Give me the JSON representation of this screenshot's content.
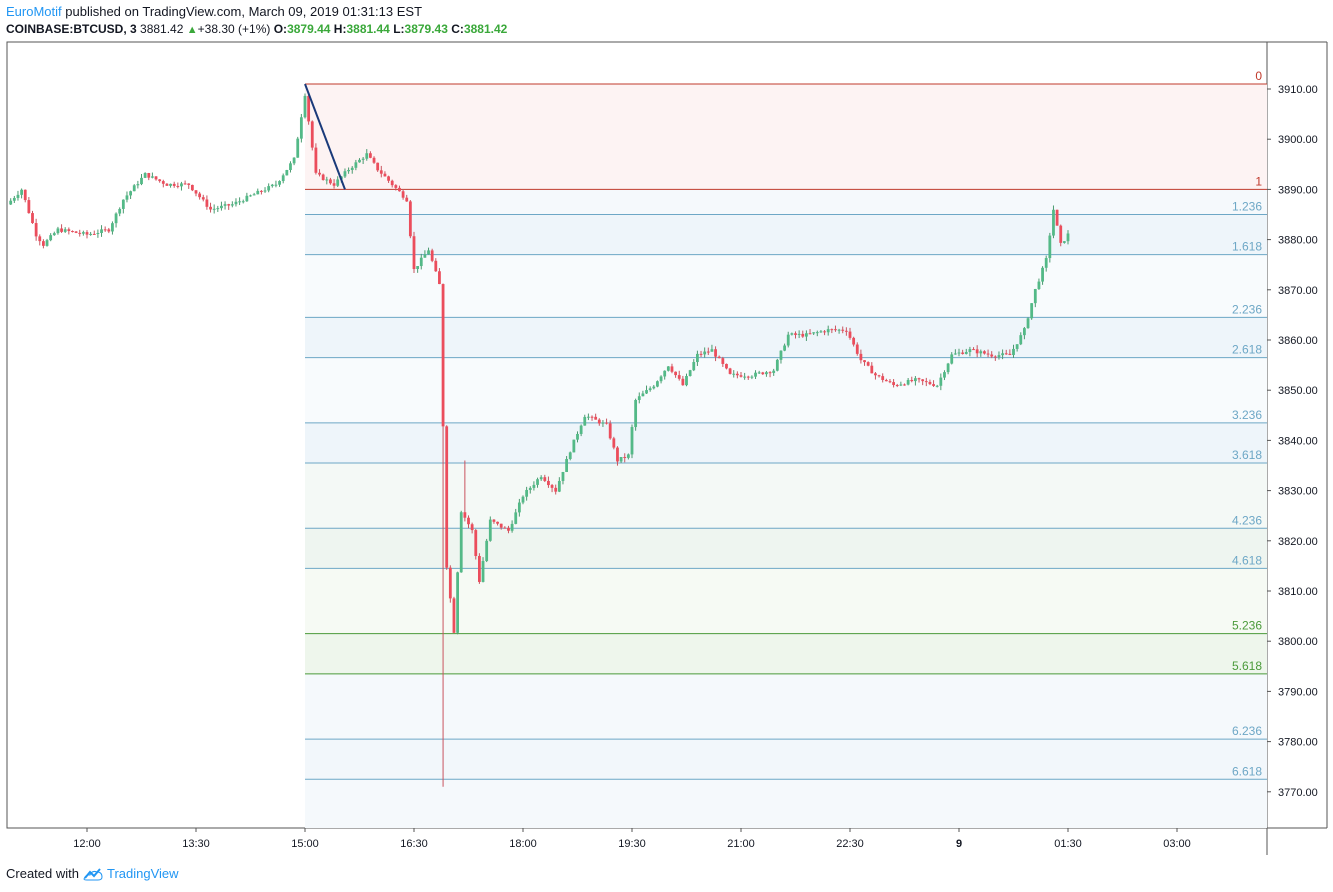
{
  "header": {
    "author": "EuroMotif",
    "published": " published on TradingView.com, March 09, 2019 01:31:13 EST",
    "symbol": "COINBASE:BTCUSD, 3",
    "last": "3881.42",
    "change_arrow": "▲",
    "change": "+38.30 (+1%)",
    "o_label": "O:",
    "o_value": "3879.44",
    "h_label": "H:",
    "h_value": "3881.44",
    "l_label": "L:",
    "l_value": "3879.43",
    "c_label": "C:",
    "c_value": "3881.42"
  },
  "footer": {
    "created_with": "Created with",
    "brand": "TradingView",
    "logo_icon": "tradingview-cloud-icon"
  },
  "chart_data": {
    "type": "candlestick",
    "interval_minutes": 3,
    "up_color": "#53b987",
    "down_color": "#eb4d5c",
    "x_ticks": [
      "12:00",
      "13:30",
      "15:00",
      "16:30",
      "18:00",
      "19:30",
      "21:00",
      "22:30",
      "9",
      "01:30",
      "03:00"
    ],
    "y_ticks": [
      "3910.00",
      "3900.00",
      "3890.00",
      "3880.00",
      "3870.00",
      "3860.00",
      "3850.00",
      "3840.00",
      "3830.00",
      "3820.00",
      "3810.00",
      "3800.00",
      "3790.00",
      "3780.00",
      "3770.00"
    ],
    "ylim": [
      3758,
      3918
    ],
    "grid": false,
    "price_path": [
      [
        "10:54",
        3887
      ],
      [
        "11:06",
        3890
      ],
      [
        "11:18",
        3881
      ],
      [
        "11:24",
        3879
      ],
      [
        "11:36",
        3882
      ],
      [
        "12:00",
        3881
      ],
      [
        "12:18",
        3882
      ],
      [
        "12:30",
        3888
      ],
      [
        "12:48",
        3893
      ],
      [
        "13:06",
        3891
      ],
      [
        "13:24",
        3891
      ],
      [
        "13:42",
        3886
      ],
      [
        "14:00",
        3887
      ],
      [
        "14:18",
        3889
      ],
      [
        "14:36",
        3891
      ],
      [
        "14:51",
        3896
      ],
      [
        "15:00",
        3909
      ],
      [
        "15:09",
        3893
      ],
      [
        "15:24",
        3891
      ],
      [
        "15:36",
        3894
      ],
      [
        "15:51",
        3897
      ],
      [
        "16:00",
        3894
      ],
      [
        "16:12",
        3891
      ],
      [
        "16:24",
        3888
      ],
      [
        "16:30",
        3874
      ],
      [
        "16:42",
        3878
      ],
      [
        "16:51",
        3871
      ],
      [
        "16:57",
        3815
      ],
      [
        "17:03",
        3802
      ],
      [
        "17:09",
        3826
      ],
      [
        "17:18",
        3822
      ],
      [
        "17:24",
        3812
      ],
      [
        "17:33",
        3824
      ],
      [
        "17:48",
        3822
      ],
      [
        "18:00",
        3829
      ],
      [
        "18:15",
        3833
      ],
      [
        "18:27",
        3830
      ],
      [
        "18:39",
        3838
      ],
      [
        "18:51",
        3845
      ],
      [
        "19:09",
        3843
      ],
      [
        "19:18",
        3836
      ],
      [
        "19:27",
        3837
      ],
      [
        "19:33",
        3848
      ],
      [
        "19:48",
        3851
      ],
      [
        "20:00",
        3855
      ],
      [
        "20:12",
        3851
      ],
      [
        "20:24",
        3857
      ],
      [
        "20:36",
        3858
      ],
      [
        "20:51",
        3853
      ],
      [
        "21:09",
        3853
      ],
      [
        "21:27",
        3854
      ],
      [
        "21:39",
        3861
      ],
      [
        "21:54",
        3861
      ],
      [
        "22:12",
        3862
      ],
      [
        "22:27",
        3862
      ],
      [
        "22:39",
        3856
      ],
      [
        "22:51",
        3853
      ],
      [
        "23:06",
        3851
      ],
      [
        "23:24",
        3852
      ],
      [
        "23:42",
        3851
      ],
      [
        "23:54",
        3857
      ],
      [
        "00:09",
        3858
      ],
      [
        "00:27",
        3857
      ],
      [
        "00:42",
        3857
      ],
      [
        "00:54",
        3862
      ],
      [
        "01:03",
        3870
      ],
      [
        "01:12",
        3876
      ],
      [
        "01:18",
        3886
      ],
      [
        "01:24",
        3879
      ],
      [
        "01:30",
        3881
      ]
    ],
    "trend_line": {
      "from": [
        "15:00",
        3911
      ],
      "to": [
        "15:33",
        3890
      ],
      "color": "#1a3a7a"
    },
    "fib_extension": {
      "start_time": "15:00",
      "end_label_side": "right",
      "levels": [
        {
          "label": "0",
          "price": 3911.0,
          "color": "#c0392b",
          "fill": "#fdf3f3"
        },
        {
          "label": "1",
          "price": 3890.0,
          "color": "#c0392b",
          "fill": "#f5f9fc"
        },
        {
          "label": "1.236",
          "price": 3885.0,
          "color": "#6da7c6",
          "fill": "#eef5fa"
        },
        {
          "label": "1.618",
          "price": 3877.0,
          "color": "#6da7c6",
          "fill": "#f8fbfd"
        },
        {
          "label": "2.236",
          "price": 3864.5,
          "color": "#6da7c6",
          "fill": "#eef5fa"
        },
        {
          "label": "2.618",
          "price": 3856.5,
          "color": "#6da7c6",
          "fill": "#f8fbfd"
        },
        {
          "label": "3.236",
          "price": 3843.5,
          "color": "#6da7c6",
          "fill": "#eef5fa"
        },
        {
          "label": "3.618",
          "price": 3835.5,
          "color": "#6da7c6",
          "fill": "#f4f9f6"
        },
        {
          "label": "4.236",
          "price": 3822.5,
          "color": "#6da7c6",
          "fill": "#eef5f0"
        },
        {
          "label": "4.618",
          "price": 3814.5,
          "color": "#6da7c6",
          "fill": "#f6faf4"
        },
        {
          "label": "5.236",
          "price": 3801.5,
          "color": "#4a9a3a",
          "fill": "#eef6ec"
        },
        {
          "label": "5.618",
          "price": 3793.5,
          "color": "#4a9a3a",
          "fill": "#f5f9fc"
        },
        {
          "label": "6.236",
          "price": 3780.5,
          "color": "#6da7c6",
          "fill": "#f2f7fb"
        },
        {
          "label": "6.618",
          "price": 3772.5,
          "color": "#6da7c6",
          "fill": null
        }
      ]
    }
  }
}
